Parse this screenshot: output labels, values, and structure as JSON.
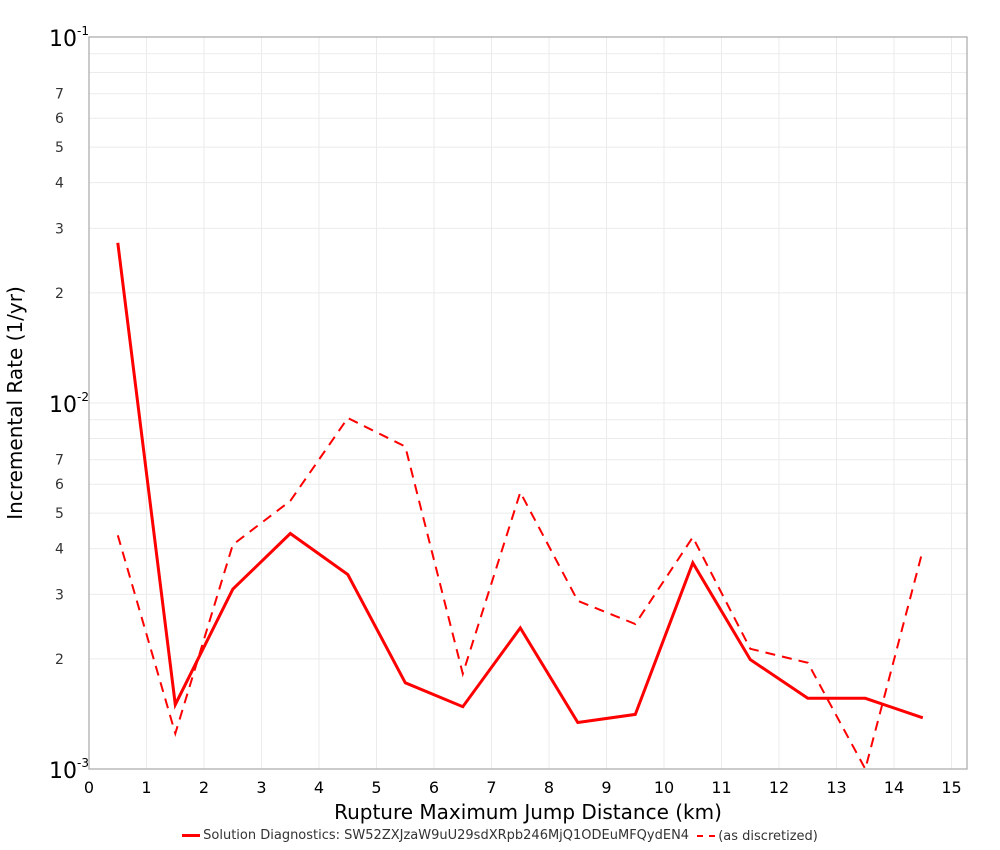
{
  "chart_data": {
    "type": "line",
    "title": "",
    "xlabel": "Rupture Maximum Jump Distance (km)",
    "ylabel": "Incremental Rate (1/yr)",
    "xlim": [
      0,
      15.3
    ],
    "ylim": [
      0.001,
      0.1
    ],
    "yscale": "log",
    "grid": true,
    "legend_position": "bottom",
    "x_ticks": [
      "0",
      "1",
      "2",
      "3",
      "4",
      "5",
      "6",
      "7",
      "8",
      "9",
      "10",
      "11",
      "12",
      "13",
      "14",
      "15"
    ],
    "y_major_ticks": [
      {
        "value": 0.1,
        "label": "10",
        "exp": "-1"
      },
      {
        "value": 0.01,
        "label": "10",
        "exp": "-2"
      },
      {
        "value": 0.001,
        "label": "10",
        "exp": "-3"
      }
    ],
    "y_minor_tick_labels": [
      "2",
      "3",
      "4",
      "5",
      "6",
      "7"
    ],
    "x": [
      0.5,
      1.5,
      2.5,
      3.5,
      4.5,
      5.5,
      6.5,
      7.5,
      8.5,
      9.5,
      10.5,
      11.5,
      12.5,
      13.5,
      14.5
    ],
    "series": [
      {
        "name": "Solution Diagnostics: SW52ZXJzaW9uU29sdXRpb246MjQ1ODEuMFQydEN4",
        "style": "solid",
        "color": "#ff0000",
        "values": [
          0.0274,
          0.0015,
          0.0031,
          0.0044,
          0.0034,
          0.00172,
          0.00148,
          0.00243,
          0.00134,
          0.00141,
          0.00366,
          0.00199,
          0.00156,
          0.00156,
          0.00138
        ]
      },
      {
        "name": "(as discretized)",
        "style": "dashed",
        "color": "#ff0000",
        "values": [
          0.00435,
          0.00125,
          0.0041,
          0.0054,
          0.0091,
          0.0076,
          0.00182,
          0.0057,
          0.00288,
          0.00249,
          0.0043,
          0.00213,
          0.00195,
          0.001,
          0.00396
        ]
      }
    ]
  },
  "legend": {
    "items": [
      {
        "label": "Solution Diagnostics: SW52ZXJzaW9uU29sdXRpb246MjQ1ODEuMFQydEN4"
      },
      {
        "label": "(as discretized)"
      }
    ]
  }
}
